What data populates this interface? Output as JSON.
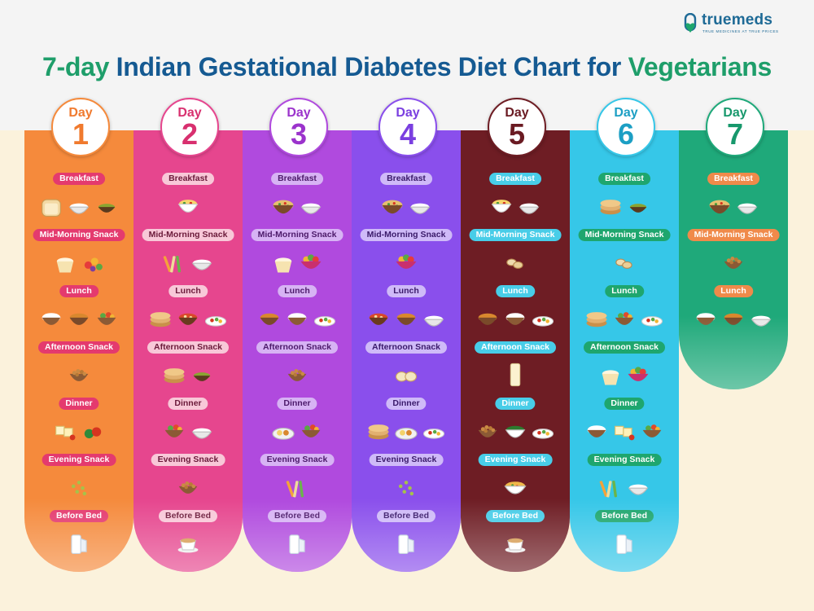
{
  "brand": {
    "name": "truemeds",
    "tagline": "TRUE MEDICINES AT TRUE PRICES"
  },
  "title": {
    "part1": "7-day Indian Gestational Diabetes Diet Chart for ",
    "part2": "Vegetarians"
  },
  "colors": {
    "title_green": "#1e9e6a",
    "title_blue": "#155a92",
    "background_top": "#f4f4f4",
    "background_bottom": "#fbf2dc"
  },
  "days": [
    {
      "day_label": "Day",
      "day_number": "1",
      "color": "#f58a3c",
      "pill_bg": "#e43a6e",
      "pill_text": "#ffffff",
      "number_color": "#f07a2e",
      "meals": [
        {
          "label": "Breakfast",
          "foods": [
            "bread-icon",
            "curd-bowl-icon",
            "chutney-bowl-icon"
          ]
        },
        {
          "label": "Mid-Morning Snack",
          "foods": [
            "curd-cup-icon",
            "mixed-fruit-icon"
          ]
        },
        {
          "label": "Lunch",
          "foods": [
            "rice-bowl-icon",
            "dal-bowl-icon",
            "vegetable-bowl-icon"
          ]
        },
        {
          "label": "Afternoon Snack",
          "foods": [
            "roasted-chana-icon"
          ]
        },
        {
          "label": "Dinner",
          "foods": [
            "paneer-cubes-icon",
            "vegetable-sabzi-icon"
          ]
        },
        {
          "label": "Evening Snack",
          "foods": [
            "sprouts-icon"
          ]
        },
        {
          "label": "Before Bed",
          "foods": [
            "milk-glass-icon"
          ]
        }
      ]
    },
    {
      "day_label": "Day",
      "day_number": "2",
      "color": "#e6468e",
      "pill_bg": "#f8c8d8",
      "pill_text": "#6b1a3a",
      "number_color": "#d8306f",
      "meals": [
        {
          "label": "Breakfast",
          "foods": [
            "poha-bowl-icon"
          ]
        },
        {
          "label": "Mid-Morning Snack",
          "foods": [
            "veggie-sticks-icon",
            "curd-bowl-icon"
          ]
        },
        {
          "label": "Lunch",
          "foods": [
            "roti-stack-icon",
            "curry-bowl-icon",
            "salad-plate-icon"
          ]
        },
        {
          "label": "Afternoon Snack",
          "foods": [
            "roti-stack-icon",
            "chutney-bowl-icon"
          ]
        },
        {
          "label": "Dinner",
          "foods": [
            "vegetable-bowl-icon",
            "curd-bowl-icon"
          ]
        },
        {
          "label": "Evening Snack",
          "foods": [
            "roasted-chana-icon"
          ]
        },
        {
          "label": "Before Bed",
          "foods": [
            "tea-cup-icon"
          ]
        }
      ]
    },
    {
      "day_label": "Day",
      "day_number": "3",
      "color": "#b04ade",
      "pill_bg": "#d7b3f4",
      "pill_text": "#4c1a6a",
      "number_color": "#9b33cc",
      "meals": [
        {
          "label": "Breakfast",
          "foods": [
            "upma-bowl-icon",
            "curd-bowl-icon"
          ]
        },
        {
          "label": "Mid-Morning Snack",
          "foods": [
            "curd-cup-icon",
            "fruit-bowl-icon"
          ]
        },
        {
          "label": "Lunch",
          "foods": [
            "dal-bowl-icon",
            "rice-bowl-icon",
            "salad-plate-icon"
          ]
        },
        {
          "label": "Afternoon Snack",
          "foods": [
            "roasted-chana-icon"
          ]
        },
        {
          "label": "Dinner",
          "foods": [
            "thali-plate-icon",
            "vegetable-bowl-icon"
          ]
        },
        {
          "label": "Evening Snack",
          "foods": [
            "veggie-sticks-icon"
          ]
        },
        {
          "label": "Before Bed",
          "foods": [
            "milk-glass-icon"
          ]
        }
      ]
    },
    {
      "day_label": "Day",
      "day_number": "4",
      "color": "#8a4fec",
      "pill_bg": "#cfbaf8",
      "pill_text": "#3a1a6a",
      "number_color": "#7a3fe0",
      "meals": [
        {
          "label": "Breakfast",
          "foods": [
            "upma-bowl-icon",
            "curd-bowl-icon"
          ]
        },
        {
          "label": "Mid-Morning Snack",
          "foods": [
            "fruit-bowl-icon"
          ]
        },
        {
          "label": "Lunch",
          "foods": [
            "curry-bowl-icon",
            "dal-bowl-icon",
            "curd-bowl-icon"
          ]
        },
        {
          "label": "Afternoon Snack",
          "foods": [
            "idli-icon"
          ]
        },
        {
          "label": "Dinner",
          "foods": [
            "roti-stack-icon",
            "thali-plate-icon",
            "salad-plate-icon"
          ]
        },
        {
          "label": "Evening Snack",
          "foods": [
            "sprouts-icon"
          ]
        },
        {
          "label": "Before Bed",
          "foods": [
            "milk-glass-icon"
          ]
        }
      ]
    },
    {
      "day_label": "Day",
      "day_number": "5",
      "color": "#6e1d24",
      "pill_bg": "#48cde8",
      "pill_text": "#ffffff",
      "number_color": "#6a1a22",
      "meals": [
        {
          "label": "Breakfast",
          "foods": [
            "poha-bowl-icon",
            "curd-bowl-icon"
          ]
        },
        {
          "label": "Mid-Morning Snack",
          "foods": [
            "nuts-icon"
          ]
        },
        {
          "label": "Lunch",
          "foods": [
            "dal-bowl-icon",
            "rice-bowl-icon",
            "salad-plate-icon"
          ]
        },
        {
          "label": "Afternoon Snack",
          "foods": [
            "buttermilk-glass-icon"
          ]
        },
        {
          "label": "Dinner",
          "foods": [
            "roasted-chana-icon",
            "palak-bowl-icon",
            "salad-plate-icon"
          ]
        },
        {
          "label": "Evening Snack",
          "foods": [
            "soup-bowl-icon"
          ]
        },
        {
          "label": "Before Bed",
          "foods": [
            "tea-cup-icon"
          ]
        }
      ]
    },
    {
      "day_label": "Day",
      "day_number": "6",
      "color": "#36c7e8",
      "pill_bg": "#1ea66e",
      "pill_text": "#ffffff",
      "number_color": "#1c9fc4",
      "meals": [
        {
          "label": "Breakfast",
          "foods": [
            "roti-stack-icon",
            "chutney-bowl-icon"
          ]
        },
        {
          "label": "Mid-Morning Snack",
          "foods": [
            "nuts-icon"
          ]
        },
        {
          "label": "Lunch",
          "foods": [
            "roti-stack-icon",
            "vegetable-bowl-icon",
            "salad-plate-icon"
          ]
        },
        {
          "label": "Afternoon Snack",
          "foods": [
            "curd-cup-icon",
            "fruit-bowl-icon"
          ]
        },
        {
          "label": "Dinner",
          "foods": [
            "rice-bowl-icon",
            "paneer-cubes-icon",
            "vegetable-bowl-icon"
          ]
        },
        {
          "label": "Evening Snack",
          "foods": [
            "veggie-sticks-icon",
            "curd-bowl-icon"
          ]
        },
        {
          "label": "Before Bed",
          "foods": [
            "milk-glass-icon"
          ]
        }
      ]
    },
    {
      "day_label": "Day",
      "day_number": "7",
      "color": "#1fa97a",
      "pill_bg": "#f08a4a",
      "pill_text": "#ffffff",
      "number_color": "#17986c",
      "meals": [
        {
          "label": "Breakfast",
          "foods": [
            "upma-bowl-icon",
            "curd-bowl-icon"
          ]
        },
        {
          "label": "Mid-Morning Snack",
          "foods": [
            "roasted-chana-icon"
          ]
        },
        {
          "label": "Lunch",
          "foods": [
            "rice-bowl-icon",
            "dal-bowl-icon",
            "curd-bowl-icon"
          ]
        }
      ]
    }
  ]
}
